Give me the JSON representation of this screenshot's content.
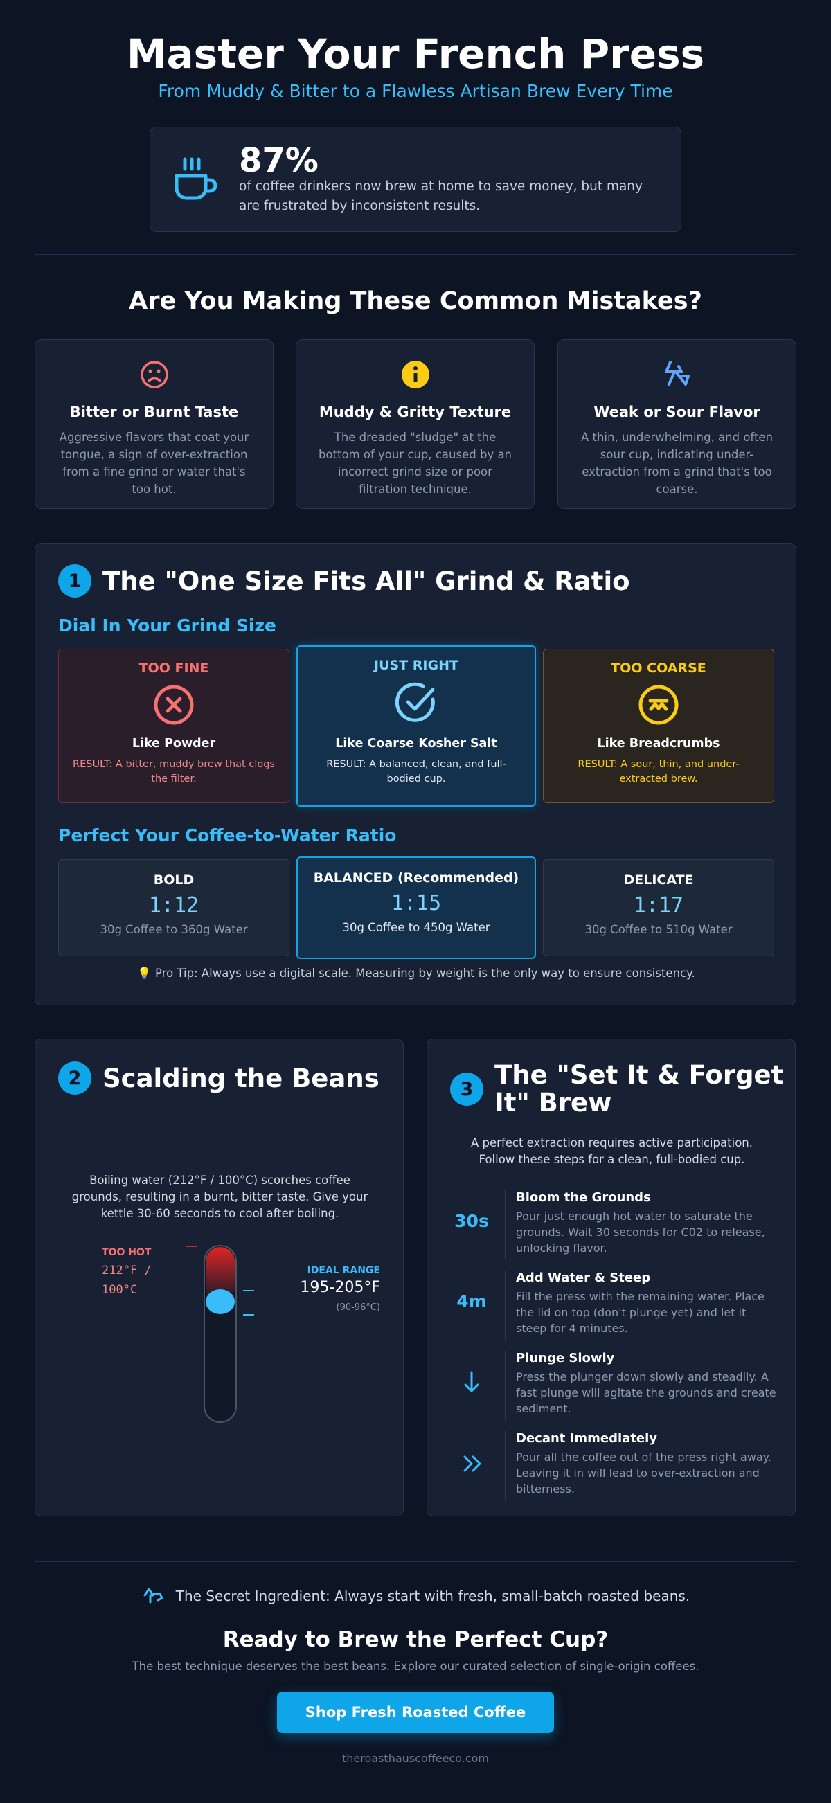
{
  "header": {
    "title": "Master Your French Press",
    "subtitle": "From Muddy & Bitter to a Flawless Artisan Brew Every Time"
  },
  "stat": {
    "value": "87%",
    "text": "of coffee drinkers now brew at home to save money, but many are frustrated by inconsistent results."
  },
  "mistakes": {
    "heading": "Are You Making These Common Mistakes?",
    "items": [
      {
        "title": "Bitter or Burnt Taste",
        "text": "Aggressive flavors that coat your tongue, a sign of over-extraction from a fine grind or water that's too hot."
      },
      {
        "title": "Muddy & Gritty Texture",
        "text": "The dreaded \"sludge\" at the bottom of your cup, caused by an incorrect grind size or poor filtration technique."
      },
      {
        "title": "Weak or Sour Flavor",
        "text": "A thin, underwhelming, and often sour cup, indicating under-extraction from a grind that's too coarse."
      }
    ]
  },
  "section1": {
    "number": "1",
    "title": "The \"One Size Fits All\" Grind & Ratio",
    "grind_heading": "Dial In Your Grind Size",
    "grind": [
      {
        "label": "TOO FINE",
        "name": "Like Powder",
        "result": "RESULT: A bitter, muddy brew that clogs the filter."
      },
      {
        "label": "JUST RIGHT",
        "name": "Like Coarse Kosher Salt",
        "result": "RESULT: A balanced, clean, and full-bodied cup."
      },
      {
        "label": "TOO COARSE",
        "name": "Like Breadcrumbs",
        "result": "RESULT: A sour, thin, and under-extracted brew."
      }
    ],
    "ratio_heading": "Perfect Your Coffee-to-Water Ratio",
    "ratios": [
      {
        "label": "BOLD",
        "ratio": "1:12",
        "detail": "30g Coffee to 360g Water"
      },
      {
        "label": "BALANCED (Recommended)",
        "ratio": "1:15",
        "detail": "30g Coffee to 450g Water"
      },
      {
        "label": "DELICATE",
        "ratio": "1:17",
        "detail": "30g Coffee to 510g Water"
      }
    ],
    "tip": "💡 Pro Tip: Always use a digital scale. Measuring by weight is the only way to ensure consistency."
  },
  "section2": {
    "number": "2",
    "title": "Scalding the Beans",
    "text": "Boiling water (212°F / 100°C) scorches coffee grounds, resulting in a burnt, bitter taste. Give your kettle 30-60 seconds to cool after boiling.",
    "hot_label": "TOO HOT",
    "hot_value": "212°F / 100°C",
    "ideal_label": "IDEAL RANGE",
    "ideal_value": "195-205°F",
    "ideal_celsius": "(90-96°C)"
  },
  "section3": {
    "number": "3",
    "title": "The \"Set It & Forget It\" Brew",
    "intro": "A perfect extraction requires active participation. Follow these steps for a clean, full-bodied cup.",
    "steps": [
      {
        "time": "30s",
        "title": "Bloom the Grounds",
        "text": "Pour just enough hot water to saturate the grounds. Wait 30 seconds for C02 to release, unlocking flavor."
      },
      {
        "time": "4m",
        "title": "Add Water & Steep",
        "text": "Fill the press with the remaining water. Place the lid on top (don't plunge yet) and let it steep for 4 minutes."
      },
      {
        "title": "Plunge Slowly",
        "text": "Press the plunger down slowly and steadily. A fast plunge will agitate the grounds and create sediment."
      },
      {
        "title": "Decant Immediately",
        "text": "Pour all the coffee out of the press right away. Leaving it in will lead to over-extraction and bitterness."
      }
    ]
  },
  "footer": {
    "secret": "The Secret Ingredient: Always start with fresh, small-batch roasted beans.",
    "cta_title": "Ready to Brew the Perfect Cup?",
    "cta_text": "The best technique deserves the best beans. Explore our curated selection of single-origin coffees.",
    "button": "Shop Fresh Roasted Coffee",
    "site": "theroasthauscoffeeco.com"
  }
}
